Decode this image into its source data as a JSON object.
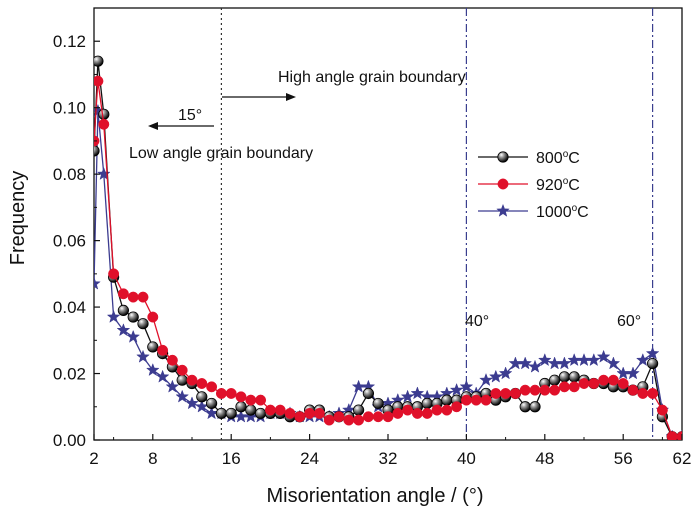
{
  "chart_data": {
    "type": "line",
    "xlabel": "Misorientation angle / (°)",
    "ylabel": "Frequency",
    "xlim": [
      2,
      62
    ],
    "ylim": [
      0,
      0.13
    ],
    "xticks": [
      2,
      8,
      16,
      24,
      32,
      40,
      48,
      56,
      62
    ],
    "yticks": [
      0.0,
      0.02,
      0.04,
      0.06,
      0.08,
      0.1,
      0.12
    ],
    "ytick_labels": [
      "0.00",
      "0.02",
      "0.04",
      "0.06",
      "0.08",
      "0.10",
      "0.12"
    ],
    "grid": false,
    "legend_position": "right",
    "reference_lines": [
      {
        "x": 15,
        "label": "15°",
        "style": "dotted",
        "color": "#333333"
      },
      {
        "x": 40,
        "label": "40°",
        "style": "dashdot",
        "color": "#3a3f8f"
      },
      {
        "x": 59,
        "label": "60°",
        "style": "dashdot",
        "color": "#3a3f8f"
      }
    ],
    "annotations": [
      {
        "text": "High angle grain boundary",
        "arrow": "right"
      },
      {
        "text": "Low angle grain boundary",
        "arrow": "left"
      }
    ],
    "series": [
      {
        "name": "800",
        "unit_sup": "o",
        "unit": "C",
        "color": "#111111",
        "marker": "ball",
        "x": [
          2,
          2.4,
          3,
          4,
          5,
          6,
          7,
          8,
          9,
          10,
          11,
          12,
          13,
          14,
          15,
          16,
          17,
          18,
          19,
          20,
          21,
          22,
          23,
          24,
          25,
          26,
          27,
          28,
          29,
          30,
          31,
          32,
          33,
          34,
          35,
          36,
          37,
          38,
          39,
          40,
          41,
          42,
          43,
          44,
          45,
          46,
          47,
          48,
          49,
          50,
          51,
          52,
          53,
          54,
          55,
          56,
          57,
          58,
          59,
          60,
          61,
          62
        ],
        "y": [
          0.087,
          0.114,
          0.098,
          0.049,
          0.039,
          0.037,
          0.035,
          0.028,
          0.026,
          0.022,
          0.018,
          0.017,
          0.013,
          0.011,
          0.008,
          0.008,
          0.01,
          0.009,
          0.008,
          0.008,
          0.008,
          0.007,
          0.007,
          0.009,
          0.009,
          0.007,
          0.007,
          0.007,
          0.009,
          0.014,
          0.011,
          0.009,
          0.01,
          0.01,
          0.01,
          0.011,
          0.011,
          0.012,
          0.012,
          0.013,
          0.013,
          0.014,
          0.012,
          0.013,
          0.014,
          0.01,
          0.01,
          0.017,
          0.018,
          0.019,
          0.019,
          0.018,
          0.017,
          0.017,
          0.016,
          0.016,
          0.015,
          0.016,
          0.023,
          0.007,
          0.001,
          0.001
        ]
      },
      {
        "name": "920",
        "unit_sup": "o",
        "unit": "C",
        "color": "#e0102a",
        "marker": "circle",
        "x": [
          2,
          2.4,
          3,
          4,
          5,
          6,
          7,
          8,
          9,
          10,
          11,
          12,
          13,
          14,
          15,
          16,
          17,
          18,
          19,
          20,
          21,
          22,
          23,
          24,
          25,
          26,
          27,
          28,
          29,
          30,
          31,
          32,
          33,
          34,
          35,
          36,
          37,
          38,
          39,
          40,
          41,
          42,
          43,
          44,
          45,
          46,
          47,
          48,
          49,
          50,
          51,
          52,
          53,
          54,
          55,
          56,
          57,
          58,
          59,
          60,
          61,
          62
        ],
        "y": [
          0.09,
          0.108,
          0.095,
          0.05,
          0.044,
          0.043,
          0.043,
          0.037,
          0.027,
          0.024,
          0.021,
          0.018,
          0.017,
          0.016,
          0.014,
          0.014,
          0.013,
          0.012,
          0.012,
          0.009,
          0.009,
          0.008,
          0.007,
          0.008,
          0.008,
          0.006,
          0.007,
          0.006,
          0.006,
          0.007,
          0.007,
          0.007,
          0.008,
          0.009,
          0.008,
          0.008,
          0.009,
          0.009,
          0.01,
          0.012,
          0.012,
          0.012,
          0.014,
          0.014,
          0.014,
          0.015,
          0.015,
          0.015,
          0.015,
          0.016,
          0.016,
          0.017,
          0.017,
          0.018,
          0.018,
          0.017,
          0.015,
          0.014,
          0.014,
          0.009,
          0.001,
          0.001
        ]
      },
      {
        "name": "1000",
        "unit_sup": "o",
        "unit": "C",
        "color": "#3c3c90",
        "marker": "star",
        "x": [
          2,
          2.4,
          3,
          4,
          5,
          6,
          7,
          8,
          9,
          10,
          11,
          12,
          13,
          14,
          15,
          16,
          17,
          18,
          19,
          20,
          21,
          22,
          23,
          24,
          25,
          26,
          27,
          28,
          29,
          30,
          31,
          32,
          33,
          34,
          35,
          36,
          37,
          38,
          39,
          40,
          41,
          42,
          43,
          44,
          45,
          46,
          47,
          48,
          49,
          50,
          51,
          52,
          53,
          54,
          55,
          56,
          57,
          58,
          59,
          60,
          61,
          62
        ],
        "y": [
          0.047,
          0.099,
          0.08,
          0.037,
          0.033,
          0.031,
          0.025,
          0.021,
          0.019,
          0.016,
          0.013,
          0.011,
          0.01,
          0.008,
          0.008,
          0.007,
          0.007,
          0.007,
          0.007,
          0.008,
          0.008,
          0.008,
          0.007,
          0.007,
          0.007,
          0.007,
          0.008,
          0.009,
          0.016,
          0.016,
          0.01,
          0.011,
          0.012,
          0.013,
          0.014,
          0.013,
          0.013,
          0.014,
          0.015,
          0.016,
          0.014,
          0.018,
          0.019,
          0.02,
          0.023,
          0.023,
          0.022,
          0.024,
          0.023,
          0.023,
          0.024,
          0.024,
          0.024,
          0.025,
          0.023,
          0.02,
          0.02,
          0.024,
          0.026,
          0.009,
          0.001,
          0.001
        ]
      }
    ]
  }
}
